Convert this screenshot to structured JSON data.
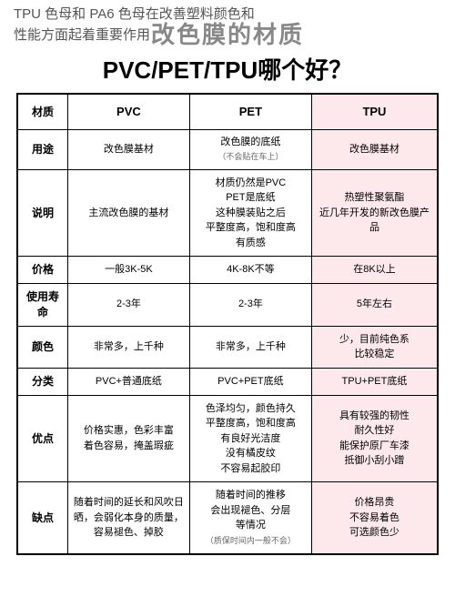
{
  "top_text_line1": "TPU 色母和 PA6 色母在改善塑料颜色和",
  "top_text_line2": "性能方面起着重要作用",
  "title_line1": "改色膜的材质",
  "title_line2": "PVC/PET/TPU哪个好？",
  "colors": {
    "tpu_bg": "#fde9eb",
    "border": "#000000",
    "title_gray": "#888888"
  },
  "table": {
    "header": {
      "col0": "材质",
      "col1": "PVC",
      "col2": "PET",
      "col3": "TPU"
    },
    "rows": [
      {
        "label": "用途",
        "pvc": "改色膜基材",
        "pet": "改色膜的底纸",
        "pet_sub": "（不会贴在车上）",
        "tpu": "改色膜基材"
      },
      {
        "label": "说明",
        "pvc": "主流改色膜的基材",
        "pet": "材质仍然是PVC\nPET是底纸\n这种膜装贴之后\n平整度高，饱和度高\n有质感",
        "tpu": "热塑性聚氨酯\n近几年开发的新改色膜产\n品"
      },
      {
        "label": "价格",
        "pvc": "一般3K-5K",
        "pet": "4K-8K不等",
        "tpu": "在8K以上"
      },
      {
        "label": "使用寿命",
        "pvc": "2-3年",
        "pet": "2-3年",
        "tpu": "5年左右"
      },
      {
        "label": "颜色",
        "pvc": "非常多，上千种",
        "pet": "非常多，上千种",
        "tpu": "少，目前纯色系\n比较稳定"
      },
      {
        "label": "分类",
        "pvc": "PVC+普通底纸",
        "pet": "PVC+PET底纸",
        "tpu": "TPU+PET底纸"
      },
      {
        "label": "优点",
        "pvc": "价格实惠，色彩丰富\n着色容易，掩盖瑕疵",
        "pet": "色泽均匀，颜色持久\n平整度高，饱和度高\n有良好光洁度\n没有橘皮纹\n不容易起胶印",
        "tpu": "具有较强的韧性\n耐久性好\n能保护原厂车漆\n抵御小刮小蹭"
      },
      {
        "label": "缺点",
        "pvc": "随着时间的延长和风吹日\n晒，会弱化本身的质量，\n容易褪色、掉胶",
        "pet": "随着时间的推移\n会出现褪色、分层\n等情况",
        "pet_sub": "（质保时间内一般不会）",
        "tpu": "价格昂贵\n不容易着色\n可选颜色少"
      }
    ]
  }
}
